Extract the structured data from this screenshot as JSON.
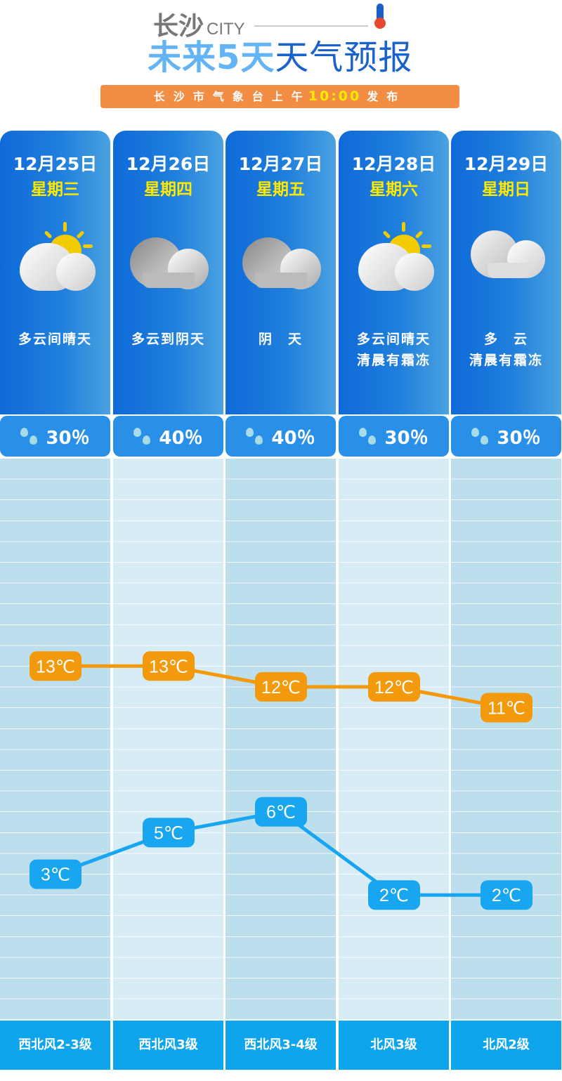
{
  "header": {
    "city": "长沙",
    "city_en": "CITY",
    "title_a": "未来5天",
    "title_b": "天气预报",
    "publisher": "长沙市气象台上午",
    "time": "10:00",
    "publish_suffix": "发布"
  },
  "days": [
    {
      "date": "12月25日",
      "week": "星期三",
      "icon": "partly-sunny-icon",
      "desc1": "多云间晴天",
      "desc2": "",
      "rain": "30％",
      "wind": "西北风2-3级"
    },
    {
      "date": "12月26日",
      "week": "星期四",
      "icon": "overcast-icon",
      "desc1": "多云到阴天",
      "desc2": "",
      "rain": "40％",
      "wind": "西北风3级"
    },
    {
      "date": "12月27日",
      "week": "星期五",
      "icon": "overcast-icon",
      "desc1": "阴　天",
      "desc2": "",
      "rain": "40％",
      "wind": "西北风3-4级"
    },
    {
      "date": "12月28日",
      "week": "星期六",
      "icon": "partly-sunny-icon",
      "desc1": "多云间晴天",
      "desc2": "清晨有霜冻",
      "rain": "30％",
      "wind": "北风3级"
    },
    {
      "date": "12月29日",
      "week": "星期日",
      "icon": "cloudy-icon",
      "desc1": "多　云",
      "desc2": "清晨有霜冻",
      "rain": "30％",
      "wind": "北风2级"
    }
  ],
  "colors": {
    "high": "#f39a0c",
    "low": "#17a6ef",
    "card": "#1f7fdc",
    "publish_bar": "#f28d43"
  },
  "chart_data": {
    "type": "line",
    "categories": [
      "12月25日",
      "12月26日",
      "12月27日",
      "12月28日",
      "12月29日"
    ],
    "series": [
      {
        "key": "high",
        "values": [
          13,
          13,
          12,
          12,
          11
        ],
        "labels": [
          "13℃",
          "13℃",
          "12℃",
          "12℃",
          "11℃"
        ]
      },
      {
        "key": "low",
        "values": [
          3,
          5,
          6,
          2,
          2
        ],
        "labels": [
          "3℃",
          "5℃",
          "6℃",
          "2℃",
          "2℃"
        ]
      }
    ],
    "unit": "℃",
    "ylim": [
      -4,
      23
    ],
    "grid": true
  }
}
